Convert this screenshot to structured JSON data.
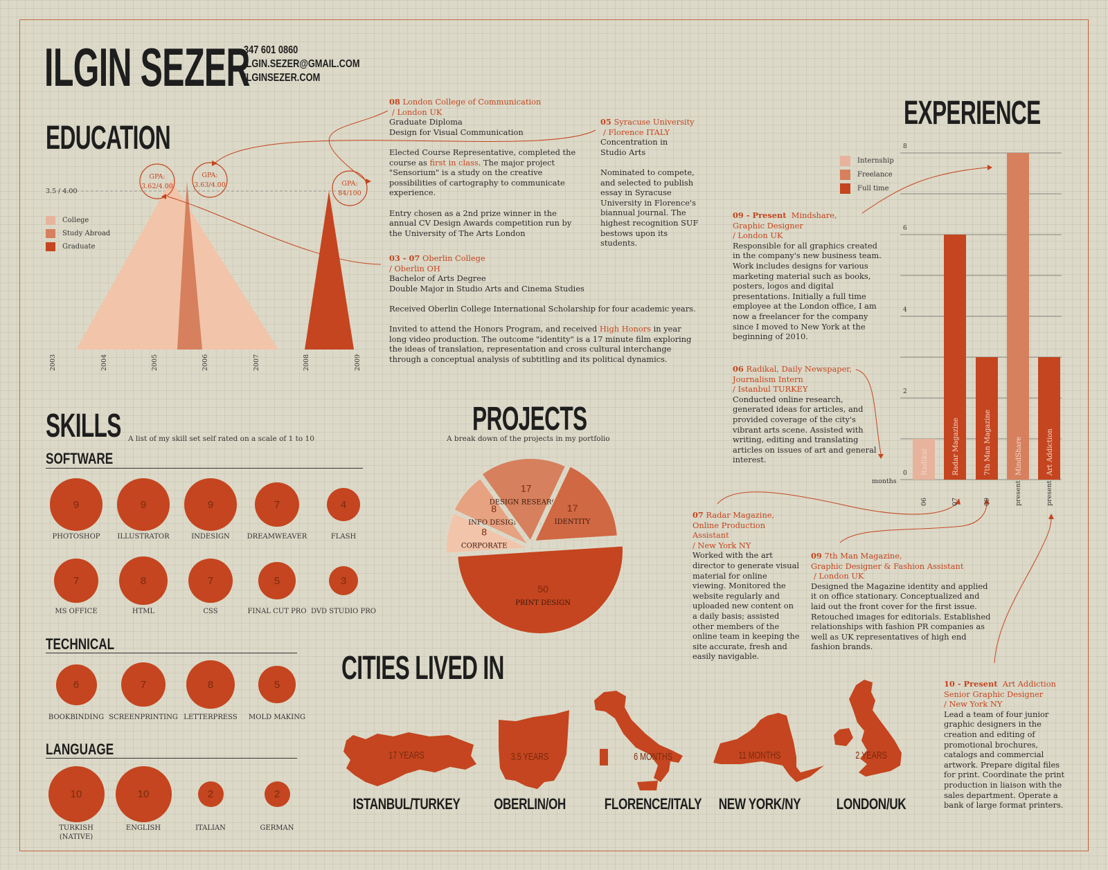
{
  "header": {
    "name": "ILGIN SEZER",
    "phone": "347 601 0860",
    "email": "ILGIN.SEZER@GMAIL.COM",
    "website": "ILGINSEZER.COM"
  },
  "education": {
    "title": "EDUCATION",
    "gpa_axis": "3.5 / 4.00",
    "legend": [
      "College",
      "Study Abroad",
      "Graduate"
    ],
    "colors": {
      "college": "#f2c4aa",
      "study_abroad": "#d6805d",
      "graduate": "#c4451f"
    },
    "gpa_bubbles": [
      "GPA:",
      "3.62/4.00",
      "GPA:",
      "3.63/4.00",
      "GPA:",
      "84/100"
    ],
    "years": [
      "2003",
      "2004",
      "2005",
      "2006",
      "2007",
      "2008",
      "2009"
    ],
    "entries": [
      {
        "dates": "08",
        "school": "London College of Communication",
        "place": "/ London UK",
        "lines": [
          "Graduate Diploma",
          "Design for Visual Communication"
        ],
        "p1a": "Elected Course Representative, completed the course as ",
        "p1hl": "first in class",
        "p1b": ". The major project \"Sensorium\" is a study on the creative possibilities of cartography to communicate experience.",
        "p2": "Entry chosen as a 2nd prize winner in the annual CV Design Awards competition run by the University of The Arts London"
      },
      {
        "dates": "05",
        "school": "Syracuse University",
        "place": "/ Florence ITALY",
        "lines": [
          "Concentration in",
          "Studio Arts"
        ],
        "p1": "Nominated to compete, and selected to publish essay in Syracuse University in Florence's biannual journal. The highest recognition SUF bestows upon its students."
      },
      {
        "dates": "03 - 07",
        "school": "Oberlin College",
        "place": "/ Oberlin OH",
        "lines": [
          "Bachelor of Arts Degree",
          "Double Major in Studio Arts and Cinema Studies"
        ],
        "p1": "Received Oberlin College International Scholarship for four academic years.",
        "p2a": "Invited to attend the Honors Program, and received ",
        "p2hl": "High Honors",
        "p2b": " in year long video production. The outcome \"identity\" is a 17 minute film exploring the ideas of translation, representation and cross cultural interchange through a conceptual analysis of subtitling and its political dynamics."
      }
    ]
  },
  "skills": {
    "title": "SKILLS",
    "subtitle": "A list of my skill set self rated on a scale of 1 to 10",
    "software_title": "SOFTWARE",
    "technical_title": "TECHNICAL",
    "language_title": "LANGUAGE",
    "software": [
      {
        "name": "PHOTOSHOP",
        "score": "9"
      },
      {
        "name": "ILLUSTRATOR",
        "score": "9"
      },
      {
        "name": "INDESIGN",
        "score": "9"
      },
      {
        "name": "DREAMWEAVER",
        "score": "7"
      },
      {
        "name": "FLASH",
        "score": "4"
      },
      {
        "name": "MS OFFICE",
        "score": "7"
      },
      {
        "name": "HTML",
        "score": "8"
      },
      {
        "name": "CSS",
        "score": "7"
      },
      {
        "name": "FINAL CUT PRO",
        "score": "5"
      },
      {
        "name": "DVD STUDIO PRO",
        "score": "3"
      }
    ],
    "technical": [
      {
        "name": "BOOKBINDING",
        "score": "6"
      },
      {
        "name": "SCREENPRINTING",
        "score": "7"
      },
      {
        "name": "LETTERPRESS",
        "score": "8"
      },
      {
        "name": "MOLD MAKING",
        "score": "5"
      }
    ],
    "language": [
      {
        "name": "TURKISH",
        "name2": "(NATIVE)",
        "score": "10"
      },
      {
        "name": "ENGLISH",
        "score": "10"
      },
      {
        "name": "ITALIAN",
        "score": "2"
      },
      {
        "name": "GERMAN",
        "score": "2"
      }
    ]
  },
  "projects": {
    "title": "PROJECTS",
    "subtitle": "A break down of the projects in my portfolio",
    "chart_data": {
      "type": "pie",
      "slices": [
        {
          "label": "PRINT DESIGN",
          "value": 50,
          "color": "#c4451f"
        },
        {
          "label": "CORPORATE",
          "value": 8,
          "color": "#f2c4aa"
        },
        {
          "label": "INFO DESIGN",
          "value": 8,
          "color": "#e7a281"
        },
        {
          "label": "DESIGN RESEARCH",
          "value": 17,
          "color": "#d6805d"
        },
        {
          "label": "IDENTITY",
          "value": 17,
          "color": "#d06843"
        }
      ]
    }
  },
  "cities": {
    "title": "CITIES LIVED IN",
    "items": [
      {
        "name": "ISTANBUL/TURKEY",
        "duration": "17 YEARS"
      },
      {
        "name": "OBERLIN/OH",
        "duration": "3.5 YEARS"
      },
      {
        "name": "FLORENCE/ITALY",
        "duration": "6 MONTHS"
      },
      {
        "name": "NEW YORK/NY",
        "duration": "11 MONTHS"
      },
      {
        "name": "LONDON/UK",
        "duration": "2 YEARS"
      }
    ]
  },
  "experience": {
    "title": "EXPERIENCE",
    "legend": [
      "Internship",
      "Freelance",
      "Full time"
    ],
    "chart_data": {
      "type": "bar",
      "ylabel": "months",
      "ylim": [
        0,
        8
      ],
      "yticks": [
        "0",
        "2",
        "4",
        "6",
        "8"
      ],
      "bars": [
        {
          "label": "Radikal",
          "start": "06",
          "value": 1,
          "type": "Internship",
          "color": "#e7b39c"
        },
        {
          "label": "Radar Magazine",
          "start": "07",
          "value": 6,
          "type": "Full time",
          "color": "#c4451f"
        },
        {
          "label": "7th Man Magazine",
          "start": "09",
          "value": 3,
          "type": "Full time",
          "color": "#c4451f"
        },
        {
          "label": "MindShare",
          "start": "present",
          "value": 8,
          "type": "Freelance",
          "color": "#d6805d"
        },
        {
          "label": "Art Addiction",
          "start": "present",
          "value": 3,
          "type": "Full time",
          "color": "#c4451f"
        }
      ]
    },
    "jobs": [
      {
        "dates": "09 - Present",
        "company": "Mindshare,",
        "role": "Graphic Designer",
        "place": "/ London UK",
        "text": "Responsible for all graphics created in the company's new business team. Work includes designs for various marketing material such as books, posters, logos and digital presentations. Initially a full time employee at the London office, I am now a freelancer for the company since I moved to New York at the beginning of 2010."
      },
      {
        "dates": "06",
        "company": "Radikal, Daily Newspaper,",
        "role": "Journalism Intern",
        "place": "/ Istanbul TURKEY",
        "text": "Conducted online research, generated ideas for articles, and provided coverage of the city's vibrant arts scene. Assisted with writing, editing and translating articles on issues of art and general interest."
      },
      {
        "dates": "07",
        "company": "Radar Magazine,",
        "role": "Online Production Assistant",
        "place": "/ New York NY",
        "text": "Worked with the art director to generate visual material for online viewing. Monitored the website regularly and uploaded new content on a daily basis; assisted other members of the online team in keeping the site accurate, fresh and easily navigable."
      },
      {
        "dates": "09",
        "company": "7th Man Magazine,",
        "role": "Graphic Designer & Fashion Assistant",
        "place": "/ London UK",
        "text": "Designed the Magazine identity and applied it on office stationary. Conceptualized and laid out the front cover for the first issue. Retouched images for editorials. Established relationships with fashion PR companies as well as UK representatives of high end fashion brands."
      },
      {
        "dates": "10 - Present",
        "company": "Art Addiction",
        "role": "Senior Graphic Designer",
        "place": "/ New York NY",
        "text": "Lead a team of four junior graphic designers in the creation and editing of promotional brochures, catalogs and commercial artwork. Prepare digital files for print. Coordinate the print production in liaison with the sales department. Operate a bank of large format printers."
      }
    ]
  }
}
